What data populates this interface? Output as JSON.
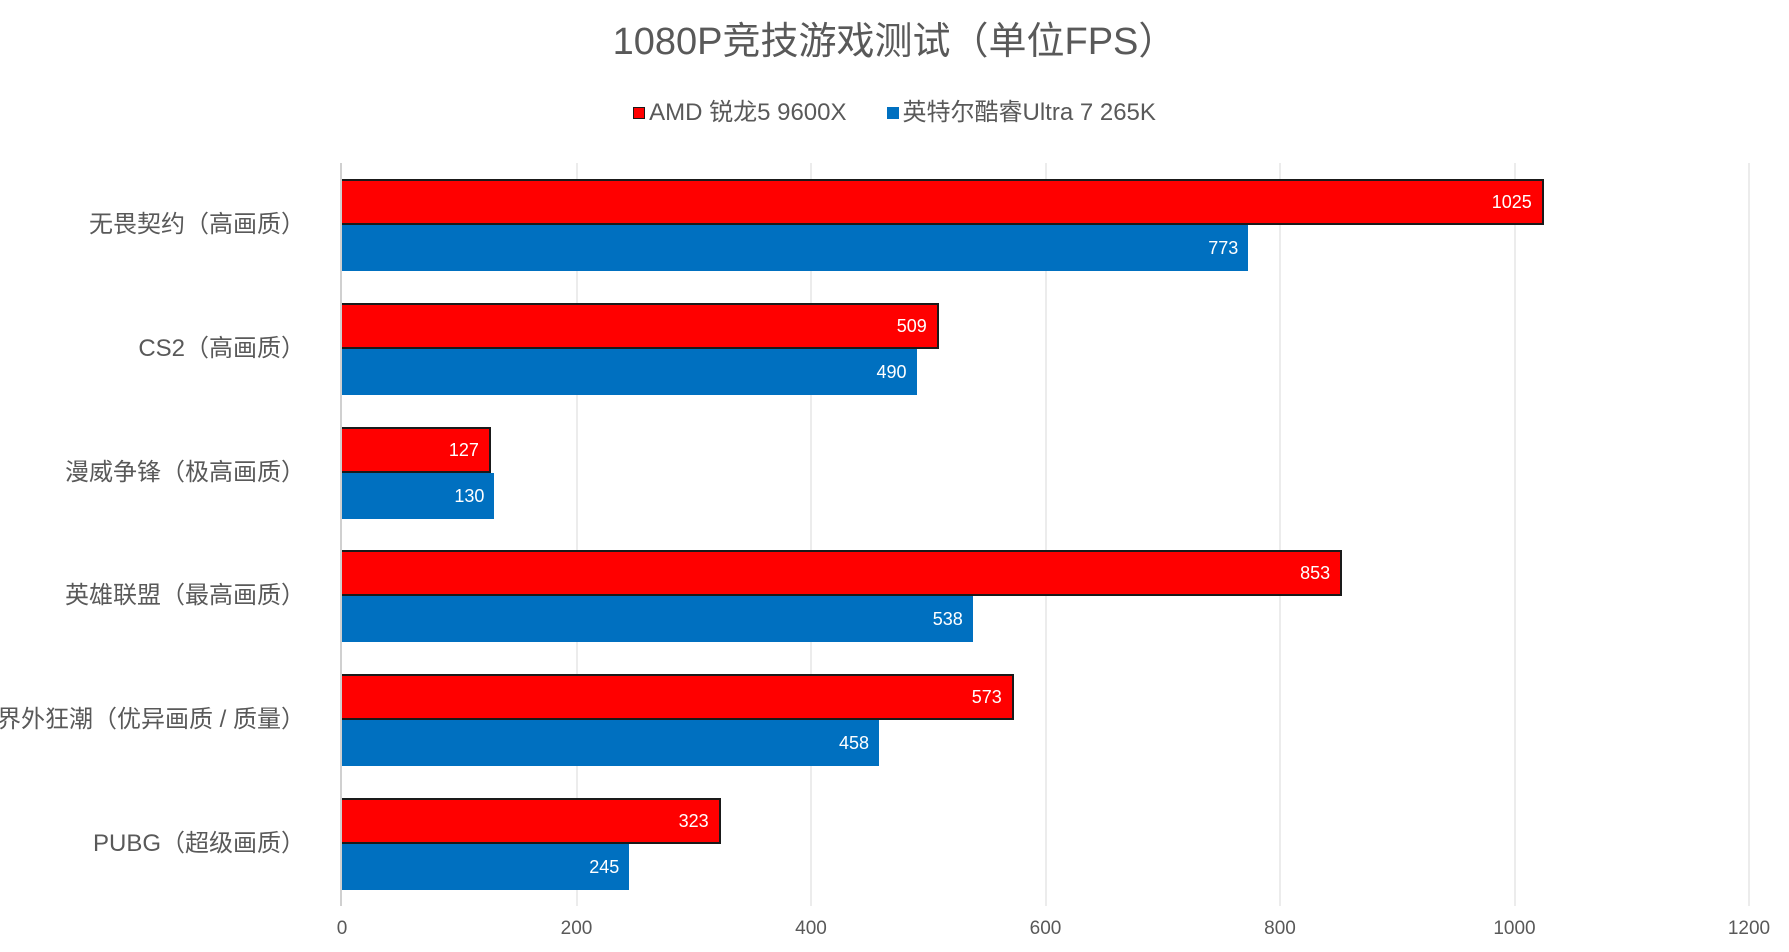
{
  "chart_data": {
    "type": "bar",
    "orientation": "horizontal",
    "title": "1080P竞技游戏测试（单位FPS）",
    "xlabel": "",
    "ylabel": "",
    "xlim": [
      0,
      1200
    ],
    "xticks": [
      "0",
      "200",
      "400",
      "600",
      "800",
      "1000",
      "1200"
    ],
    "grid": true,
    "legend_position": "top",
    "categories": [
      "无畏契约（高画质）",
      "CS2（高画质）",
      "漫威争锋（极高画质）",
      "英雄联盟（最高画质）",
      "界外狂潮（优异画质 / 质量）",
      "PUBG（超级画质）"
    ],
    "series": [
      {
        "name": "AMD 锐龙5 9600X",
        "color": "#ff0000",
        "values": [
          1025,
          509,
          127,
          853,
          573,
          323
        ]
      },
      {
        "name": "英特尔酷睿Ultra 7 265K",
        "color": "#0070c0",
        "values": [
          773,
          490,
          130,
          538,
          458,
          245
        ]
      }
    ]
  },
  "legend": {
    "amd_label": "AMD 锐龙5 9600X",
    "intel_label": "英特尔酷睿Ultra 7 265K"
  }
}
